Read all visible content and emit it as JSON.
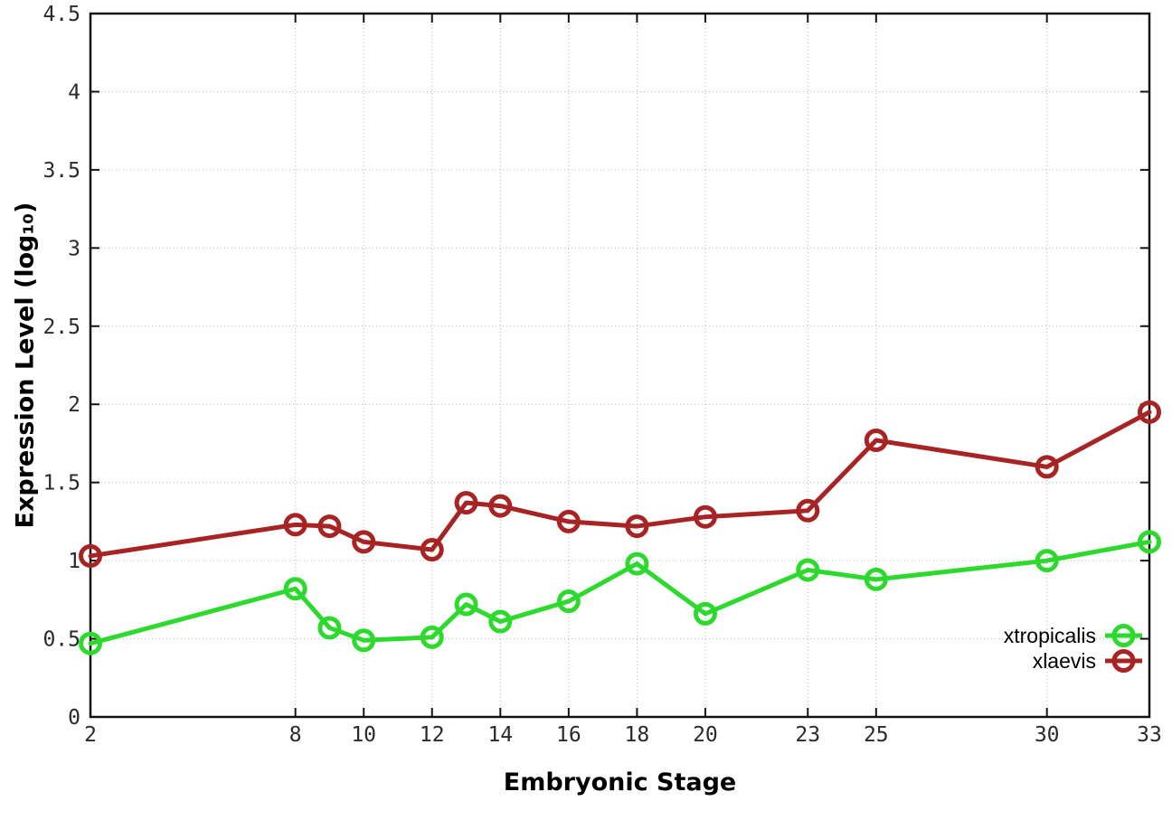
{
  "figure": {
    "background": "#ffffff",
    "border_color": "#141414",
    "grid_color": "#b5b5b5"
  },
  "chart_data": {
    "type": "line",
    "title": "",
    "xlabel": "Embryonic Stage",
    "ylabel": "Expression Level (log₁₀)",
    "xlim": [
      2,
      33
    ],
    "ylim": [
      0,
      4.5
    ],
    "grid": true,
    "legend_position": "inside-bottom-right",
    "x": [
      2,
      8,
      9,
      10,
      12,
      13,
      14,
      16,
      18,
      20,
      23,
      25,
      30,
      33
    ],
    "xtick_labels": [
      "2",
      "8",
      "10",
      "12",
      "14",
      "16",
      "18",
      "20",
      "23",
      "25",
      "30",
      "33"
    ],
    "xtick_values": [
      2,
      8,
      10,
      12,
      14,
      16,
      18,
      20,
      23,
      25,
      30,
      33
    ],
    "ytick_labels": [
      "0",
      "0.5",
      "1",
      "1.5",
      "2",
      "2.5",
      "3",
      "3.5",
      "4",
      "4.5"
    ],
    "ytick_values": [
      0,
      0.5,
      1,
      1.5,
      2,
      2.5,
      3,
      3.5,
      4,
      4.5
    ],
    "series": [
      {
        "name": "xtropicalis",
        "color": "#2cd92c",
        "marker": "open-circle",
        "values": [
          0.47,
          0.82,
          0.57,
          0.49,
          0.51,
          0.72,
          0.61,
          0.74,
          0.98,
          0.66,
          0.94,
          0.88,
          1.0,
          1.12
        ]
      },
      {
        "name": "xlaevis",
        "color": "#a82424",
        "marker": "open-circle",
        "values": [
          1.03,
          1.23,
          1.22,
          1.12,
          1.07,
          1.37,
          1.35,
          1.25,
          1.22,
          1.28,
          1.32,
          1.77,
          1.6,
          1.95
        ]
      }
    ]
  }
}
